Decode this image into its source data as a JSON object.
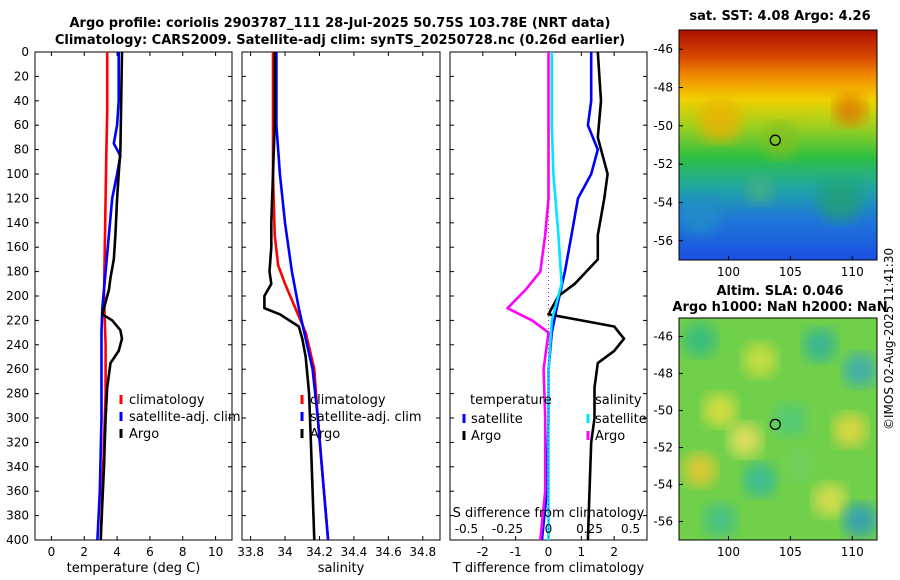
{
  "header": {
    "title_line1": "Argo profile: coriolis 2903787_111 28-Jul-2025 50.75S 103.78E (NRT data)",
    "title_line2": "Climatology: CARS2009. Satellite-adj clim: synTS_20250728.nc (0.26d earlier)"
  },
  "colors": {
    "climatology": "#ff0000",
    "satellite": "#0000ff",
    "argo": "#000000",
    "sal_sat": "#00e5ff",
    "sal_argo": "#ff00ff"
  },
  "chart_data": [
    {
      "type": "line",
      "id": "temperature",
      "xlabel": "temperature (deg C)",
      "xlim": [
        -1,
        11
      ],
      "ylim": [
        0,
        400
      ],
      "yticks": [
        "0",
        "20",
        "40",
        "60",
        "80",
        "100",
        "120",
        "140",
        "160",
        "180",
        "200",
        "220",
        "240",
        "260",
        "280",
        "300",
        "320",
        "340",
        "360",
        "380",
        "400"
      ],
      "xticks": [
        "0",
        "2",
        "4",
        "6",
        "8",
        "10"
      ],
      "legend": [
        "climatology",
        "satellite-adj. clim",
        "Argo"
      ],
      "series": [
        {
          "name": "climatology",
          "points": [
            [
              3.4,
              0
            ],
            [
              3.4,
              50
            ],
            [
              3.35,
              80
            ],
            [
              3.3,
              120
            ],
            [
              3.25,
              160
            ],
            [
              3.2,
              200
            ],
            [
              3.3,
              240
            ],
            [
              3.3,
              280
            ],
            [
              3.2,
              320
            ],
            [
              3.1,
              360
            ],
            [
              3.0,
              400
            ]
          ]
        },
        {
          "name": "satellite-adj. clim",
          "points": [
            [
              4.1,
              0
            ],
            [
              4.1,
              40
            ],
            [
              4.0,
              60
            ],
            [
              3.8,
              75
            ],
            [
              4.2,
              85
            ],
            [
              4.0,
              100
            ],
            [
              3.7,
              120
            ],
            [
              3.5,
              150
            ],
            [
              3.3,
              180
            ],
            [
              3.1,
              210
            ],
            [
              3.05,
              230
            ],
            [
              3.05,
              300
            ],
            [
              2.95,
              360
            ],
            [
              2.8,
              400
            ]
          ]
        },
        {
          "name": "Argo",
          "points": [
            [
              4.3,
              0
            ],
            [
              4.25,
              40
            ],
            [
              4.2,
              80
            ],
            [
              4.1,
              100
            ],
            [
              4.0,
              120
            ],
            [
              3.9,
              150
            ],
            [
              3.8,
              170
            ],
            [
              3.6,
              185
            ],
            [
              3.5,
              195
            ],
            [
              3.3,
              205
            ],
            [
              3.1,
              215
            ],
            [
              3.7,
              220
            ],
            [
              4.2,
              228
            ],
            [
              4.3,
              235
            ],
            [
              4.1,
              245
            ],
            [
              3.6,
              255
            ],
            [
              3.4,
              275
            ],
            [
              3.3,
              300
            ],
            [
              3.2,
              340
            ],
            [
              3.1,
              370
            ],
            [
              3.0,
              400
            ]
          ]
        }
      ]
    },
    {
      "type": "line",
      "id": "salinity",
      "xlabel": "salinity",
      "xlim": [
        33.75,
        34.9
      ],
      "ylim": [
        0,
        400
      ],
      "xticks": [
        "33.8",
        "34",
        "34.2",
        "34.4",
        "34.6",
        "34.8"
      ],
      "legend": [
        "climatology",
        "satellite-adj. clim",
        "Argo"
      ],
      "series": [
        {
          "name": "climatology",
          "points": [
            [
              33.93,
              0
            ],
            [
              33.93,
              100
            ],
            [
              33.94,
              150
            ],
            [
              33.96,
              175
            ],
            [
              34.0,
              190
            ],
            [
              34.06,
              210
            ],
            [
              34.12,
              230
            ],
            [
              34.17,
              260
            ],
            [
              34.19,
              300
            ],
            [
              34.22,
              350
            ],
            [
              34.25,
              400
            ]
          ]
        },
        {
          "name": "satellite-adj. clim",
          "points": [
            [
              33.95,
              0
            ],
            [
              33.95,
              60
            ],
            [
              33.97,
              100
            ],
            [
              34.0,
              140
            ],
            [
              34.04,
              180
            ],
            [
              34.08,
              210
            ],
            [
              34.12,
              235
            ],
            [
              34.16,
              260
            ],
            [
              34.19,
              300
            ],
            [
              34.22,
              350
            ],
            [
              34.25,
              400
            ]
          ]
        },
        {
          "name": "Argo",
          "points": [
            [
              33.94,
              0
            ],
            [
              33.94,
              60
            ],
            [
              33.93,
              100
            ],
            [
              33.92,
              140
            ],
            [
              33.92,
              160
            ],
            [
              33.91,
              180
            ],
            [
              33.92,
              190
            ],
            [
              33.88,
              200
            ],
            [
              33.88,
              210
            ],
            [
              33.97,
              215
            ],
            [
              34.08,
              225
            ],
            [
              34.1,
              235
            ],
            [
              34.12,
              250
            ],
            [
              34.14,
              280
            ],
            [
              34.15,
              320
            ],
            [
              34.16,
              360
            ],
            [
              34.17,
              400
            ]
          ]
        }
      ]
    },
    {
      "type": "line",
      "id": "difference",
      "xlabel": "T difference from climatology",
      "xlabel_top": "S difference from climatology",
      "xlim": [
        -3,
        3
      ],
      "ylim": [
        0,
        400
      ],
      "xticks": [
        "-2",
        "-1",
        "0",
        "1",
        "2"
      ],
      "xticks_top": [
        "-0.5",
        "-0.25",
        "0",
        "0.25",
        "0.5"
      ],
      "legend_left_title": "temperature",
      "legend_right_title": "salinity",
      "legend_left": [
        "satellite",
        "Argo"
      ],
      "legend_right": [
        "satellite",
        "Argo"
      ],
      "series": [
        {
          "name": "T satellite",
          "points": [
            [
              1.3,
              0
            ],
            [
              1.3,
              40
            ],
            [
              1.2,
              60
            ],
            [
              1.5,
              80
            ],
            [
              1.3,
              100
            ],
            [
              0.9,
              120
            ],
            [
              0.7,
              150
            ],
            [
              0.5,
              180
            ],
            [
              0.25,
              210
            ],
            [
              0.1,
              230
            ],
            [
              0.0,
              260
            ],
            [
              0.0,
              300
            ],
            [
              -0.05,
              360
            ],
            [
              -0.2,
              400
            ]
          ]
        },
        {
          "name": "T Argo",
          "points": [
            [
              1.5,
              0
            ],
            [
              1.6,
              40
            ],
            [
              1.5,
              70
            ],
            [
              1.8,
              100
            ],
            [
              1.7,
              120
            ],
            [
              1.5,
              150
            ],
            [
              1.5,
              170
            ],
            [
              0.8,
              190
            ],
            [
              0.3,
              200
            ],
            [
              0.0,
              215
            ],
            [
              1.0,
              220
            ],
            [
              2.0,
              225
            ],
            [
              2.3,
              235
            ],
            [
              2.0,
              245
            ],
            [
              1.5,
              255
            ],
            [
              1.4,
              275
            ],
            [
              1.4,
              300
            ],
            [
              1.3,
              320
            ],
            [
              1.25,
              360
            ],
            [
              1.2,
              400
            ]
          ]
        },
        {
          "name": "S satellite",
          "points": [
            [
              0.02,
              0
            ],
            [
              0.02,
              60
            ],
            [
              0.03,
              100
            ],
            [
              0.06,
              150
            ],
            [
              0.08,
              190
            ],
            [
              0.02,
              220
            ],
            [
              0.0,
              260
            ],
            [
              0.0,
              300
            ],
            [
              0.0,
              400
            ]
          ]
        },
        {
          "name": "S Argo",
          "points": [
            [
              0.0,
              0
            ],
            [
              0.0,
              120
            ],
            [
              -0.02,
              150
            ],
            [
              -0.05,
              180
            ],
            [
              -0.14,
              195
            ],
            [
              -0.25,
              210
            ],
            [
              -0.1,
              220
            ],
            [
              0.0,
              230
            ],
            [
              -0.03,
              260
            ],
            [
              -0.02,
              300
            ],
            [
              -0.02,
              360
            ],
            [
              -0.05,
              400
            ]
          ]
        }
      ]
    },
    {
      "type": "heatmap",
      "id": "sst_map",
      "title": "sat. SST: 4.08 Argo: 4.26",
      "xticks": [
        "100",
        "105",
        "110"
      ],
      "yticks": [
        "-46",
        "-48",
        "-50",
        "-52",
        "-54",
        "-56"
      ],
      "xlim": [
        96,
        112
      ],
      "ylim": [
        -57,
        -45
      ],
      "marker": {
        "lon": 103.78,
        "lat": -50.75
      }
    },
    {
      "type": "heatmap",
      "id": "sla_map",
      "title_line1": "Altim. SLA: 0.046",
      "title_line2": "Argo h1000: NaN h2000: NaN",
      "xticks": [
        "100",
        "105",
        "110"
      ],
      "yticks": [
        "-46",
        "-48",
        "-50",
        "-52",
        "-54",
        "-56"
      ],
      "xlim": [
        96,
        112
      ],
      "ylim": [
        -57,
        -45
      ],
      "marker": {
        "lon": 103.78,
        "lat": -50.75
      }
    }
  ],
  "footer": {
    "stamp": "©IMOS 02-Aug-2025 11:41:30"
  }
}
